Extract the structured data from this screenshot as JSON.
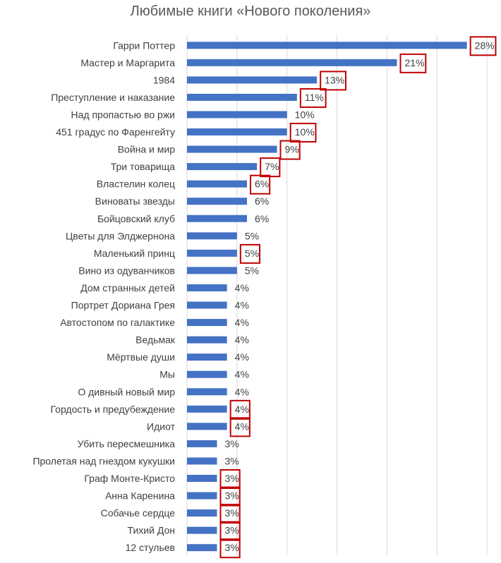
{
  "chart_data": {
    "type": "bar",
    "orientation": "horizontal",
    "title": "Любимые книги «Нового поколения»",
    "xlim": [
      0,
      30
    ],
    "grid_step": 5,
    "grid": true,
    "bar_color": "#4472C4",
    "highlight_color": "#C00000",
    "categories": [
      "Гарри Поттер",
      "Мастер и Маргарита",
      "1984",
      "Преступление и наказание",
      "Над пропастью во ржи",
      "451 градус по Фаренгейту",
      "Война и мир",
      "Три товарища",
      "Властелин колец",
      "Виноваты звезды",
      "Бойцовский клуб",
      "Цветы для Элджернона",
      "Маленький принц",
      "Вино из одуванчиков",
      "Дом странных детей",
      "Портрет Дориана Грея",
      "Автостопом по галактике",
      "Ведьмак",
      "Мёртвые души",
      "Мы",
      "О дивный новый мир",
      "Гордость и предубеждение",
      "Идиот",
      "Убить пересмешника",
      "Пролетая над гнездом кукушки",
      "Граф Монте-Кристо",
      "Анна Каренина",
      "Собачье сердце",
      "Тихий Дон",
      "12 стульев"
    ],
    "values": [
      28,
      21,
      13,
      11,
      10,
      10,
      9,
      7,
      6,
      6,
      6,
      5,
      5,
      5,
      4,
      4,
      4,
      4,
      4,
      4,
      4,
      4,
      4,
      3,
      3,
      3,
      3,
      3,
      3,
      3
    ],
    "value_labels": [
      "28%",
      "21%",
      "13%",
      "11%",
      "10%",
      "10%",
      "9%",
      "7%",
      "6%",
      "6%",
      "6%",
      "5%",
      "5%",
      "5%",
      "4%",
      "4%",
      "4%",
      "4%",
      "4%",
      "4%",
      "4%",
      "4%",
      "4%",
      "3%",
      "3%",
      "3%",
      "3%",
      "3%",
      "3%",
      "3%"
    ],
    "highlighted": [
      true,
      true,
      true,
      true,
      false,
      true,
      true,
      true,
      true,
      false,
      false,
      false,
      true,
      false,
      false,
      false,
      false,
      false,
      false,
      false,
      false,
      true,
      true,
      false,
      false,
      true,
      true,
      true,
      true,
      true
    ]
  }
}
